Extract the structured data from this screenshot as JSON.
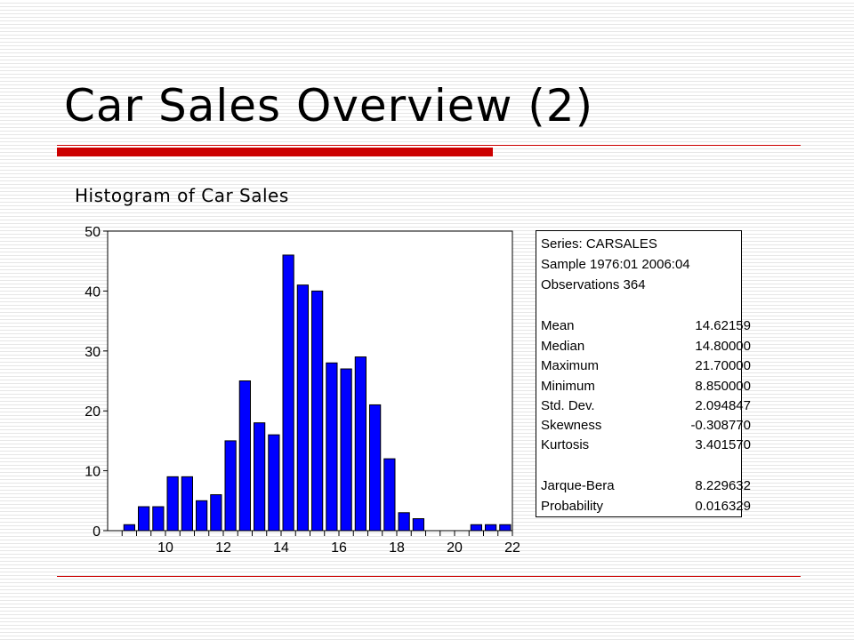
{
  "slide": {
    "title": "Car Sales Overview (2)",
    "subtitle": "Histogram of Car Sales"
  },
  "colors": {
    "accent": "#cc0000",
    "bar_fill": "#0000ff",
    "bar_stroke": "#000000"
  },
  "chart_data": {
    "type": "bar",
    "title": "",
    "xlabel": "",
    "ylabel": "",
    "bin_width": 0.5,
    "bin_centers": [
      8.75,
      9.25,
      9.75,
      10.25,
      10.75,
      11.25,
      11.75,
      12.25,
      12.75,
      13.25,
      13.75,
      14.25,
      14.75,
      15.25,
      15.75,
      16.25,
      16.75,
      17.25,
      17.75,
      18.25,
      18.75,
      19.25,
      19.75,
      20.25,
      20.75,
      21.25,
      21.75
    ],
    "values": [
      1,
      4,
      4,
      9,
      9,
      5,
      6,
      15,
      25,
      18,
      16,
      46,
      41,
      40,
      28,
      27,
      29,
      21,
      12,
      3,
      2,
      0,
      0,
      0,
      1,
      1,
      1
    ],
    "xlim": [
      8.0,
      22.0
    ],
    "ylim": [
      0,
      50
    ],
    "x_ticks": [
      "10",
      "12",
      "14",
      "16",
      "18",
      "20",
      "22"
    ],
    "y_ticks": [
      "0",
      "10",
      "20",
      "30",
      "40",
      "50"
    ],
    "grid": false
  },
  "stats": {
    "series_line": "Series: CARSALES",
    "sample_line": "Sample 1976:01 2006:04",
    "observations_line": "Observations 364",
    "rows": [
      {
        "label": "Mean",
        "value": "14.62159"
      },
      {
        "label": "Median",
        "value": "14.80000"
      },
      {
        "label": "Maximum",
        "value": "21.70000"
      },
      {
        "label": "Minimum",
        "value": "8.850000"
      },
      {
        "label": "Std. Dev.",
        "value": "2.094847"
      },
      {
        "label": "Skewness",
        "value": "-0.308770"
      },
      {
        "label": "Kurtosis",
        "value": "3.401570"
      }
    ],
    "rows2": [
      {
        "label": "Jarque-Bera",
        "value": "8.229632"
      },
      {
        "label": "Probability",
        "value": "0.016329"
      }
    ]
  }
}
